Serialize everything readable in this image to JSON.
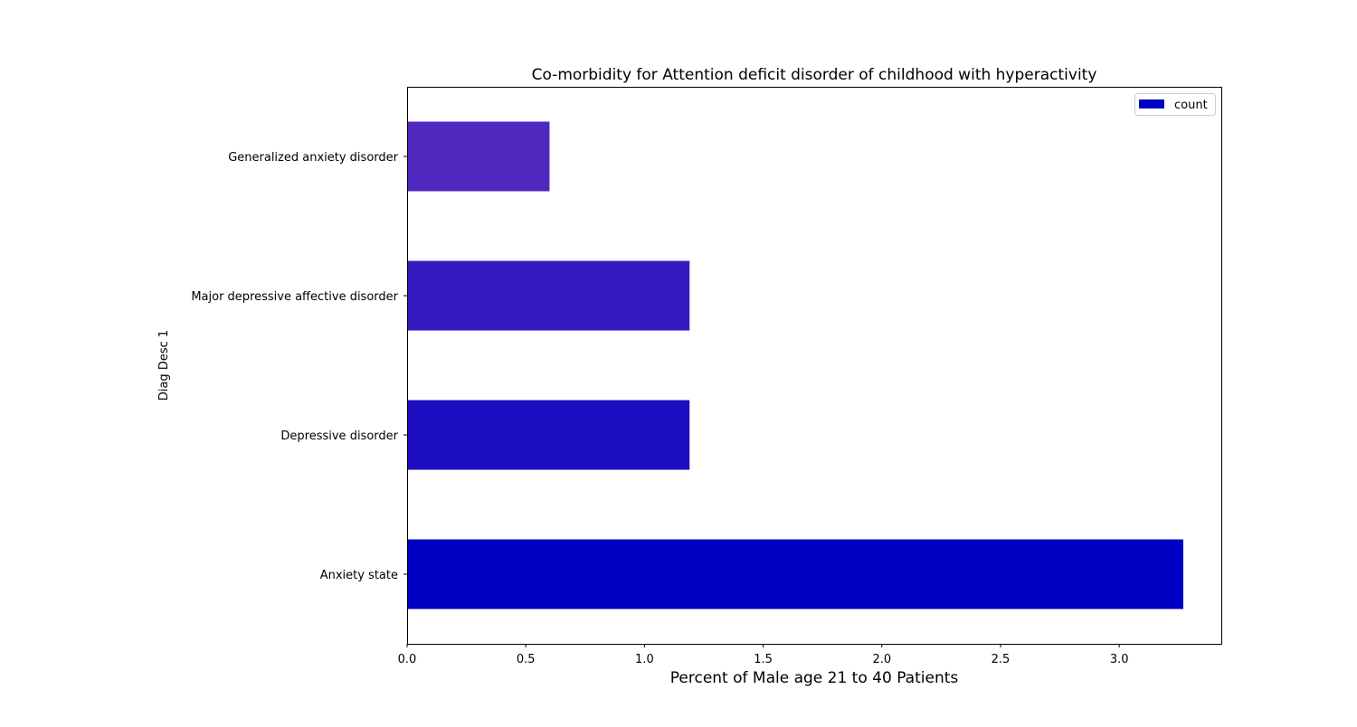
{
  "chart_data": {
    "type": "bar",
    "orientation": "horizontal",
    "title": "Co-morbidity for Attention deficit disorder of childhood with hyperactivity",
    "xlabel": "Percent of Male age 21 to 40 Patients",
    "ylabel": "Diag Desc 1",
    "categories": [
      "Anxiety state",
      "Depressive disorder",
      "Major depressive affective disorder",
      "Generalized anxiety disorder"
    ],
    "series": [
      {
        "name": "count",
        "values": [
          3.27,
          1.19,
          1.19,
          0.6
        ],
        "colors": [
          "#0000c4",
          "#1d0dc0",
          "#341bc0",
          "#5028c0"
        ]
      }
    ],
    "xlim": [
      0,
      3.43
    ],
    "xticks": [
      0.0,
      0.5,
      1.0,
      1.5,
      2.0,
      2.5,
      3.0
    ],
    "xtick_labels": [
      "0.0",
      "0.5",
      "1.0",
      "1.5",
      "2.0",
      "2.5",
      "3.0"
    ],
    "legend": {
      "placement": "top-right",
      "label": "count",
      "color": "#0000c4"
    },
    "grid": false
  }
}
